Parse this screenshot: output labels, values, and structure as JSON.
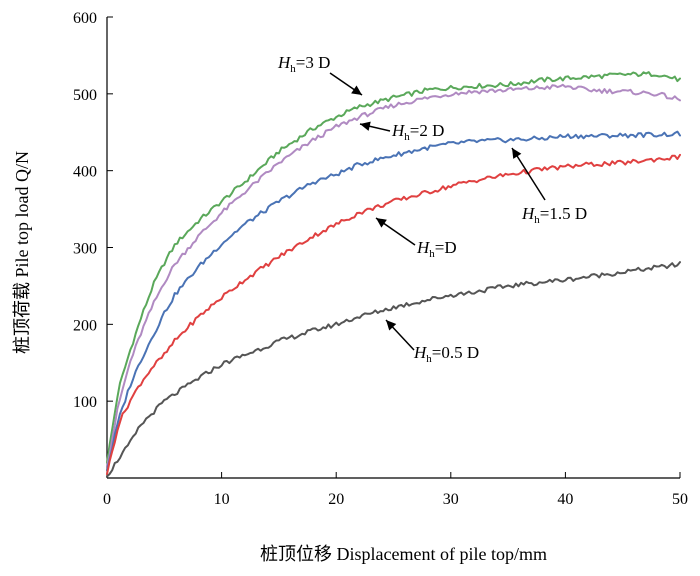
{
  "chart_data": {
    "type": "line",
    "title": "",
    "xlabel": "桩顶位移 Displacement of pile top/mm",
    "ylabel": "桩顶荷载 Pile top load Q/N",
    "xlim": [
      0,
      50
    ],
    "ylim": [
      0,
      600
    ],
    "xticks": [
      0,
      10,
      20,
      30,
      40,
      50
    ],
    "yticks": [
      100,
      200,
      300,
      400,
      500,
      600
    ],
    "x_tick_labels": [
      "0",
      "10",
      "20",
      "30",
      "40",
      "50"
    ],
    "y_tick_labels": [
      "100",
      "200",
      "300",
      "400",
      "500",
      "600"
    ],
    "grid": false,
    "x": [
      0,
      1,
      2,
      3,
      4,
      5,
      6,
      8,
      10,
      12,
      15,
      18,
      20,
      22,
      25,
      28,
      30,
      32,
      35,
      38,
      40,
      42,
      45,
      48,
      50
    ],
    "series": [
      {
        "name": "Hh=3 D",
        "label_italic": "H",
        "label_sub": "h",
        "label_rest": "=3 D",
        "color": "#5aa85a",
        "values": [
          20,
          115,
          165,
          210,
          250,
          280,
          305,
          335,
          360,
          385,
          425,
          455,
          470,
          483,
          495,
          505,
          508,
          510,
          512,
          518,
          520,
          522,
          525,
          526,
          518
        ]
      },
      {
        "name": "Hh=2 D",
        "label_italic": "H",
        "label_sub": "h",
        "label_rest": "=2 D",
        "color": "#b08ac2",
        "values": [
          15,
          95,
          150,
          190,
          225,
          255,
          280,
          315,
          345,
          372,
          410,
          440,
          457,
          470,
          485,
          495,
          500,
          503,
          505,
          508,
          510,
          505,
          503,
          500,
          492
        ]
      },
      {
        "name": "Hh=1.5 D",
        "label_italic": "H",
        "label_sub": "h",
        "label_rest": "=1.5 D",
        "color": "#4a73b5",
        "values": [
          10,
          75,
          120,
          155,
          185,
          215,
          240,
          275,
          305,
          330,
          360,
          385,
          395,
          408,
          420,
          430,
          435,
          438,
          440,
          442,
          445,
          445,
          446,
          447,
          448
        ]
      },
      {
        "name": "Hh=D",
        "label_italic": "H",
        "label_sub": "h",
        "label_rest": "=D",
        "color": "#e04040",
        "values": [
          5,
          70,
          100,
          125,
          145,
          160,
          180,
          210,
          235,
          258,
          288,
          315,
          330,
          345,
          360,
          372,
          380,
          387,
          395,
          402,
          405,
          408,
          410,
          415,
          418
        ]
      },
      {
        "name": "Hh=0.5 D",
        "label_italic": "H",
        "label_sub": "h",
        "label_rest": "=0.5 D",
        "color": "#555555",
        "values": [
          2,
          25,
          45,
          70,
          85,
          100,
          110,
          130,
          148,
          160,
          178,
          192,
          200,
          210,
          222,
          232,
          238,
          242,
          250,
          255,
          258,
          262,
          268,
          274,
          278
        ]
      }
    ]
  }
}
